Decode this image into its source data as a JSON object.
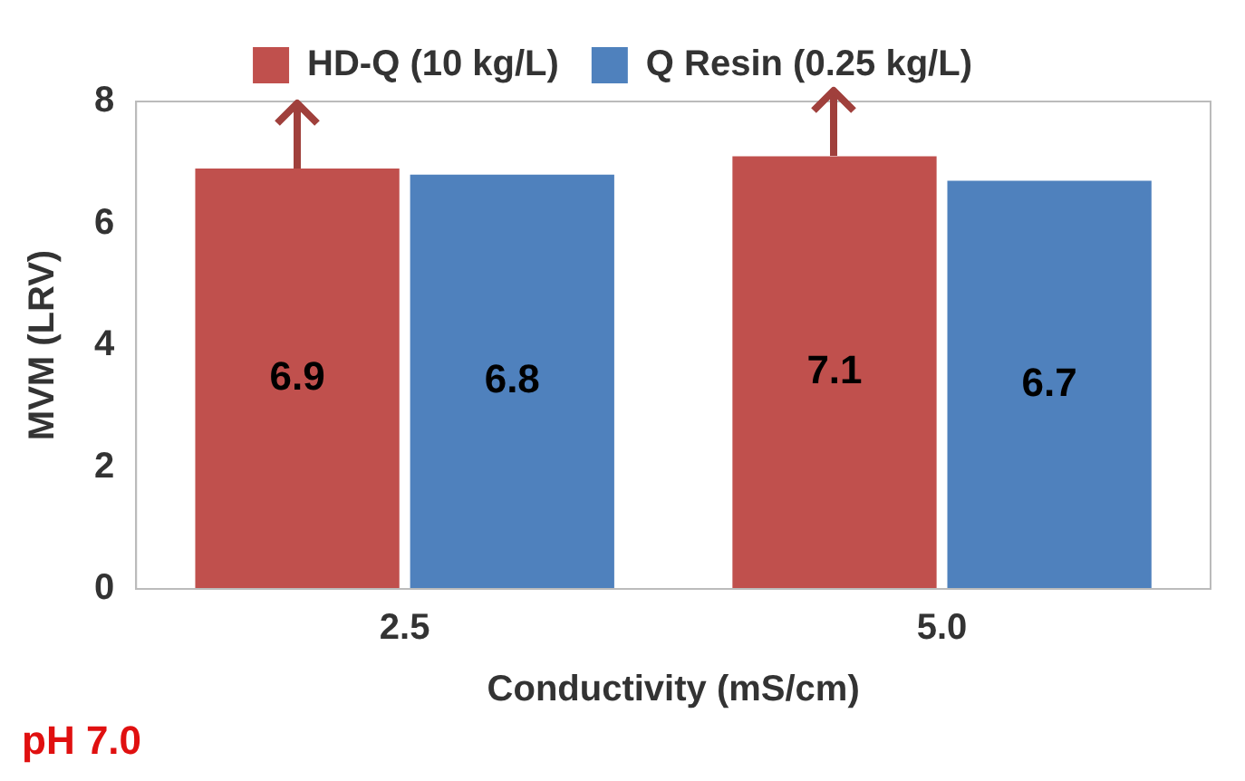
{
  "chart_data": {
    "type": "bar",
    "xlabel": "Conductivity (mS/cm)",
    "ylabel": "MVM (LRV)",
    "categories": [
      "2.5",
      "5.0"
    ],
    "series": [
      {
        "name": "HD-Q (10 kg/L)",
        "color": "#c0504d",
        "values": [
          6.9,
          7.1
        ]
      },
      {
        "name": "Q Resin (0.25 kg/L)",
        "color": "#4f81bd",
        "values": [
          6.8,
          6.7
        ]
      }
    ],
    "ylim": [
      0,
      8
    ],
    "yticks": [
      0,
      2,
      4,
      6,
      8
    ],
    "grid": false,
    "legend": "top",
    "data_labels": true,
    "annotations": [
      "pH 7.0"
    ]
  }
}
